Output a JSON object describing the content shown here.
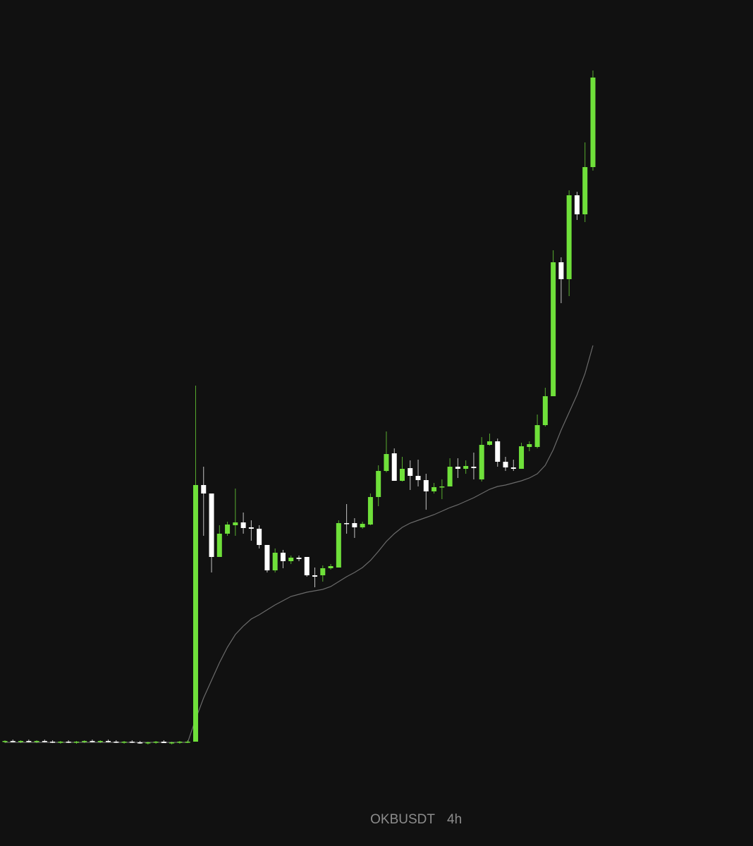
{
  "chart_data": {
    "type": "candlestick",
    "symbol": "OKBUSDT",
    "interval": "4h",
    "up_color": "#6fe03a",
    "down_color": "#ffffff",
    "ma_color": "#6b6b6b",
    "ylim": [
      0,
      96
    ],
    "open": [
      0.8,
      0.9,
      0.8,
      0.9,
      0.8,
      0.9,
      0.8,
      0.7,
      0.8,
      0.7,
      0.8,
      0.9,
      0.8,
      0.9,
      0.8,
      0.7,
      0.8,
      0.7,
      0.6,
      0.7,
      0.8,
      0.6,
      0.7,
      0.8,
      0.8,
      37.2,
      36.0,
      27.0,
      30.3,
      31.5,
      31.9,
      31.2,
      31.0,
      28.7,
      25.1,
      27.6,
      26.4,
      26.9,
      27.0,
      24.4,
      24.4,
      25.4,
      25.5,
      31.8,
      31.8,
      31.2,
      31.6,
      35.5,
      39.2,
      41.7,
      37.8,
      39.6,
      38.5,
      37.9,
      36.3,
      36.9,
      37.0,
      39.8,
      39.5,
      39.8,
      38.0,
      42.9,
      43.4,
      40.5,
      39.7,
      39.5,
      42.6,
      42.6,
      45.7,
      49.8,
      68.8,
      66.4,
      78.3,
      75.6,
      82.3
    ],
    "high": [
      1.0,
      1.1,
      1.0,
      1.1,
      1.0,
      1.1,
      1.0,
      0.9,
      1.0,
      0.9,
      1.0,
      1.1,
      1.0,
      1.1,
      1.0,
      0.9,
      1.0,
      0.9,
      0.8,
      0.9,
      1.0,
      0.8,
      0.9,
      1.0,
      51.3,
      39.8,
      36.0,
      31.5,
      32.0,
      36.7,
      33.3,
      32.2,
      31.5,
      28.7,
      28.2,
      28.0,
      27.2,
      27.2,
      27.0,
      25.5,
      25.8,
      26.0,
      32.2,
      34.5,
      32.5,
      32.0,
      36.0,
      40.0,
      44.8,
      42.4,
      41.2,
      40.7,
      40.8,
      38.8,
      37.5,
      38.0,
      41.0,
      41.0,
      40.7,
      41.8,
      44.0,
      44.5,
      43.8,
      41.2,
      40.8,
      43.2,
      43.4,
      47.2,
      51.0,
      70.5,
      69.5,
      79.0,
      78.8,
      85.8,
      96.0
    ],
    "low": [
      0.6,
      0.7,
      0.6,
      0.7,
      0.6,
      0.7,
      0.6,
      0.5,
      0.6,
      0.5,
      0.6,
      0.7,
      0.6,
      0.7,
      0.6,
      0.5,
      0.6,
      0.5,
      0.4,
      0.5,
      0.6,
      0.4,
      0.5,
      0.6,
      0.8,
      30.0,
      24.8,
      27.0,
      30.0,
      30.0,
      30.3,
      29.3,
      28.2,
      24.8,
      24.8,
      25.4,
      26.0,
      26.4,
      24.2,
      22.7,
      23.5,
      25.2,
      25.5,
      30.3,
      29.7,
      31.0,
      31.5,
      34.2,
      39.0,
      37.8,
      37.7,
      36.5,
      37.0,
      33.7,
      36.0,
      35.2,
      37.0,
      38.2,
      38.8,
      38.0,
      37.7,
      42.8,
      39.8,
      39.2,
      39.2,
      39.5,
      42.0,
      42.4,
      45.5,
      49.8,
      63.0,
      64.0,
      74.8,
      74.5,
      81.8
    ],
    "close": [
      0.9,
      0.8,
      0.9,
      0.8,
      0.9,
      0.8,
      0.7,
      0.8,
      0.7,
      0.8,
      0.9,
      0.8,
      0.9,
      0.8,
      0.7,
      0.8,
      0.7,
      0.6,
      0.7,
      0.8,
      0.6,
      0.7,
      0.8,
      0.8,
      37.2,
      36.0,
      27.0,
      30.3,
      31.6,
      31.9,
      31.1,
      31.0,
      28.7,
      25.1,
      27.6,
      26.4,
      26.9,
      26.7,
      24.4,
      24.2,
      25.4,
      25.7,
      31.8,
      31.7,
      31.2,
      31.7,
      35.5,
      39.2,
      41.6,
      37.8,
      39.5,
      38.5,
      37.9,
      36.3,
      36.9,
      37.0,
      39.8,
      39.5,
      39.9,
      39.6,
      42.9,
      43.4,
      40.5,
      39.7,
      39.5,
      42.7,
      43.0,
      45.7,
      49.8,
      68.8,
      66.4,
      78.3,
      75.6,
      82.3,
      95.0
    ],
    "ma": [
      0.7,
      0.7,
      0.7,
      0.7,
      0.7,
      0.7,
      0.7,
      0.7,
      0.7,
      0.7,
      0.7,
      0.7,
      0.7,
      0.7,
      0.7,
      0.7,
      0.7,
      0.7,
      0.7,
      0.7,
      0.7,
      0.7,
      0.7,
      0.7,
      4.0,
      7.0,
      9.5,
      12.0,
      14.2,
      16.0,
      17.2,
      18.2,
      18.8,
      19.5,
      20.2,
      20.8,
      21.4,
      21.7,
      22.0,
      22.2,
      22.4,
      22.8,
      23.5,
      24.2,
      24.8,
      25.5,
      26.5,
      27.8,
      29.2,
      30.3,
      31.2,
      31.8,
      32.2,
      32.6,
      33.0,
      33.5,
      34.0,
      34.4,
      34.9,
      35.4,
      36.0,
      36.6,
      37.0,
      37.2,
      37.5,
      37.8,
      38.2,
      38.8,
      40.0,
      42.2,
      45.0,
      47.5,
      50.0,
      53.0,
      57.0
    ]
  }
}
